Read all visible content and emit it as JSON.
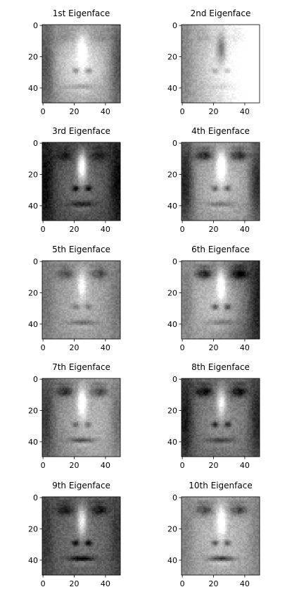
{
  "figure": {
    "background": "#ffffff",
    "colormap": "gray"
  },
  "chart_data": [
    {
      "type": "heatmap",
      "title": "1st Eigenface",
      "xticks": [
        0,
        20,
        40
      ],
      "yticks": [
        0,
        20,
        40
      ],
      "xlim": [
        0,
        50
      ],
      "ylim": [
        50,
        0
      ],
      "features": {
        "base": 0.55,
        "skin": 0.92,
        "eyeDark": 0.12,
        "noseBright": 0.3,
        "noseDark": -0.35,
        "mouthDark": -0.2,
        "sideDark": 0.45,
        "asym": 0.0
      }
    },
    {
      "type": "heatmap",
      "title": "2nd Eigenface",
      "xticks": [
        0,
        20,
        40
      ],
      "yticks": [
        0,
        20,
        40
      ],
      "xlim": [
        0,
        50
      ],
      "ylim": [
        50,
        0
      ],
      "features": {
        "base": 0.85,
        "skin": 0.95,
        "eyeDark": 0.1,
        "noseBright": -0.45,
        "noseDark": -0.2,
        "mouthDark": -0.1,
        "sideDark": 0.1,
        "asym": 0.65
      }
    },
    {
      "type": "heatmap",
      "title": "3rd Eigenface",
      "xticks": [
        0,
        20,
        40
      ],
      "yticks": [
        0,
        20,
        40
      ],
      "xlim": [
        0,
        50
      ],
      "ylim": [
        50,
        0
      ],
      "features": {
        "base": 0.25,
        "skin": 0.45,
        "eyeDark": 0.25,
        "noseBright": 0.7,
        "noseDark": -0.45,
        "mouthDark": -0.3,
        "sideDark": 0.4,
        "asym": 0.0
      }
    },
    {
      "type": "heatmap",
      "title": "4th Eigenface",
      "xticks": [
        0,
        20,
        40
      ],
      "yticks": [
        0,
        20,
        40
      ],
      "xlim": [
        0,
        50
      ],
      "ylim": [
        50,
        0
      ],
      "features": {
        "base": 0.55,
        "skin": 0.75,
        "eyeDark": 0.55,
        "noseBright": 0.55,
        "noseDark": -0.4,
        "mouthDark": -0.25,
        "sideDark": 0.7,
        "asym": 0.05
      }
    },
    {
      "type": "heatmap",
      "title": "5th Eigenface",
      "xticks": [
        0,
        20,
        40
      ],
      "yticks": [
        0,
        20,
        40
      ],
      "xlim": [
        0,
        50
      ],
      "ylim": [
        50,
        0
      ],
      "features": {
        "base": 0.55,
        "skin": 0.7,
        "eyeDark": 0.35,
        "noseBright": 0.35,
        "noseDark": -0.25,
        "mouthDark": -0.25,
        "sideDark": 0.2,
        "asym": 0.0
      }
    },
    {
      "type": "heatmap",
      "title": "6th Eigenface",
      "xticks": [
        0,
        20,
        40
      ],
      "yticks": [
        0,
        20,
        40
      ],
      "xlim": [
        0,
        50
      ],
      "ylim": [
        50,
        0
      ],
      "features": {
        "base": 0.45,
        "skin": 0.75,
        "eyeDark": 0.6,
        "noseBright": 0.45,
        "noseDark": -0.45,
        "mouthDark": -0.2,
        "sideDark": 0.3,
        "asym": -0.45
      }
    },
    {
      "type": "heatmap",
      "title": "7th Eigenface",
      "xticks": [
        0,
        20,
        40
      ],
      "yticks": [
        0,
        20,
        40
      ],
      "xlim": [
        0,
        50
      ],
      "ylim": [
        50,
        0
      ],
      "features": {
        "base": 0.55,
        "skin": 0.7,
        "eyeDark": 0.45,
        "noseBright": 0.5,
        "noseDark": -0.3,
        "mouthDark": -0.35,
        "sideDark": 0.4,
        "asym": 0.25
      }
    },
    {
      "type": "heatmap",
      "title": "8th Eigenface",
      "xticks": [
        0,
        20,
        40
      ],
      "yticks": [
        0,
        20,
        40
      ],
      "xlim": [
        0,
        50
      ],
      "ylim": [
        50,
        0
      ],
      "features": {
        "base": 0.4,
        "skin": 0.55,
        "eyeDark": 0.5,
        "noseBright": 0.45,
        "noseDark": -0.4,
        "mouthDark": -0.3,
        "sideDark": 0.5,
        "asym": 0.05
      }
    },
    {
      "type": "heatmap",
      "title": "9th Eigenface",
      "xticks": [
        0,
        20,
        40
      ],
      "yticks": [
        0,
        20,
        40
      ],
      "xlim": [
        0,
        50
      ],
      "ylim": [
        50,
        0
      ],
      "features": {
        "base": 0.35,
        "skin": 0.45,
        "eyeDark": 0.35,
        "noseBright": 0.55,
        "noseDark": -0.45,
        "mouthDark": -0.45,
        "sideDark": 0.25,
        "asym": 0.0
      }
    },
    {
      "type": "heatmap",
      "title": "10th Eigenface",
      "xticks": [
        0,
        20,
        40
      ],
      "yticks": [
        0,
        20,
        40
      ],
      "xlim": [
        0,
        50
      ],
      "ylim": [
        50,
        0
      ],
      "features": {
        "base": 0.6,
        "skin": 0.75,
        "eyeDark": 0.45,
        "noseBright": 0.45,
        "noseDark": -0.4,
        "mouthDark": -0.5,
        "sideDark": 0.2,
        "asym": 0.0
      }
    }
  ]
}
